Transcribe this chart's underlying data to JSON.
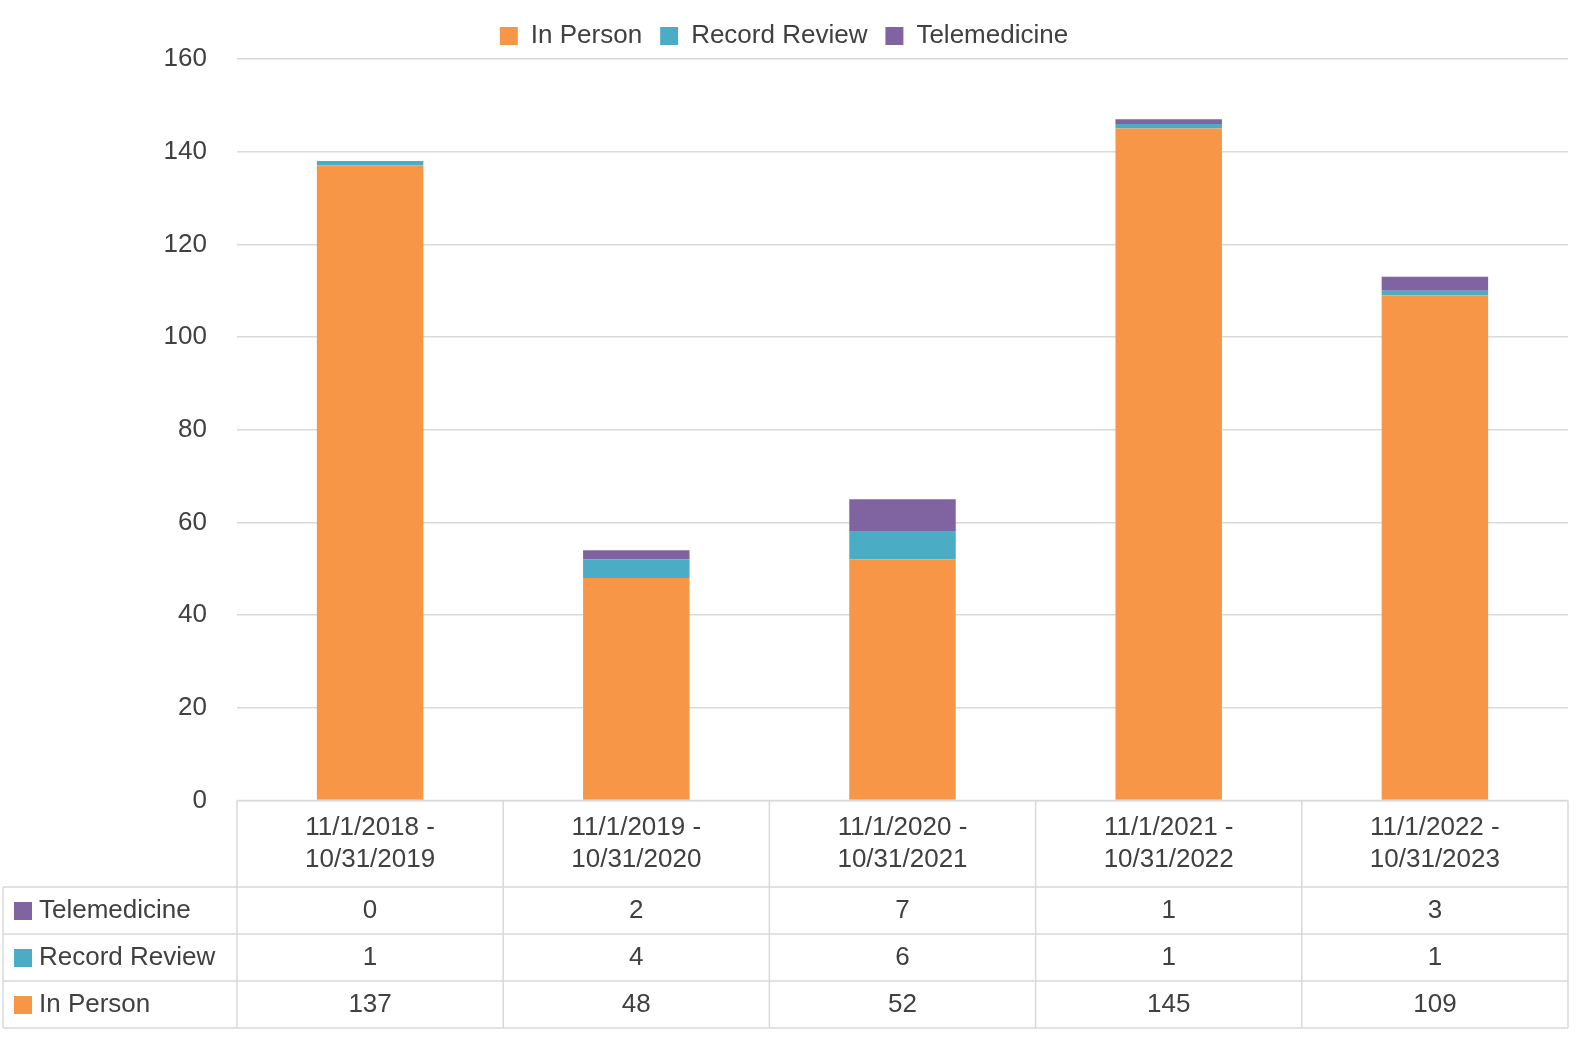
{
  "chart_data": {
    "type": "bar",
    "stacked": true,
    "categories": [
      "11/1/2018 - 10/31/2019",
      "11/1/2019 - 10/31/2020",
      "11/1/2020 - 10/31/2021",
      "11/1/2021 - 10/31/2022",
      "11/1/2022 - 10/31/2023"
    ],
    "series": [
      {
        "name": "In Person",
        "color": "#f79646",
        "values": [
          137,
          48,
          52,
          145,
          109
        ]
      },
      {
        "name": "Record Review",
        "color": "#4bacc6",
        "values": [
          1,
          4,
          6,
          1,
          1
        ]
      },
      {
        "name": "Telemedicine",
        "color": "#8064a2",
        "values": [
          0,
          2,
          7,
          1,
          3
        ]
      }
    ],
    "ylim": [
      0,
      160
    ],
    "yticks": [
      0,
      20,
      40,
      60,
      80,
      100,
      120,
      140,
      160
    ],
    "grid": "y",
    "legend": "top",
    "data_labels": true
  }
}
